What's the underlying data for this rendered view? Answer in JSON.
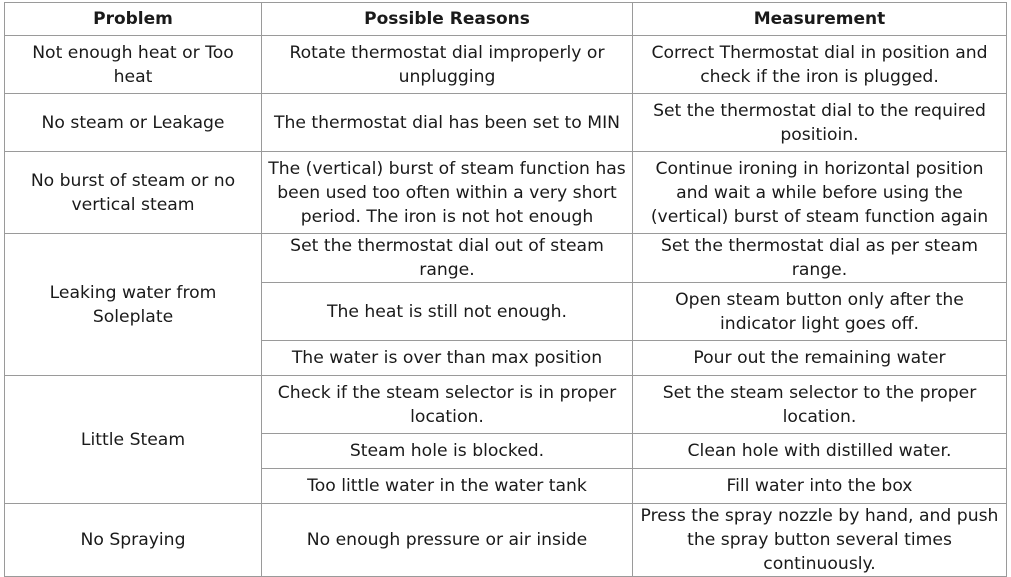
{
  "headers": {
    "problem": "Problem",
    "reasons": "Possible Reasons",
    "measurement": "Measurement"
  },
  "rows": [
    {
      "problem": "Not enough heat or Too heat",
      "items": [
        {
          "reason": "Rotate thermostat dial improperly or unplugging",
          "measure": "Correct Thermostat dial in position and check if the iron is plugged."
        }
      ]
    },
    {
      "problem": "No steam or Leakage",
      "items": [
        {
          "reason": "The thermostat dial has been set to MIN",
          "measure": "Set the thermostat dial to the required positioin."
        }
      ]
    },
    {
      "problem": "No burst of steam or no vertical steam",
      "items": [
        {
          "reason": "The (vertical) burst of steam function has been used too often within a very short period. The iron is not hot enough",
          "measure": "Continue ironing in horizontal position and wait a while before using the (vertical) burst of steam function again"
        }
      ]
    },
    {
      "problem": "Leaking water from Soleplate",
      "items": [
        {
          "reason": "Set the thermostat dial out of steam range.",
          "measure": "Set the thermostat dial as per steam range."
        },
        {
          "reason": "The heat is still not enough.",
          "measure": "Open steam button only after the indicator light goes off."
        },
        {
          "reason": "The water is over than max position",
          "measure": "Pour out the remaining water"
        }
      ]
    },
    {
      "problem": "Little Steam",
      "items": [
        {
          "reason": "Check if the steam selector is in proper location.",
          "measure": "Set the steam selector to the proper location."
        },
        {
          "reason": "Steam hole is blocked.",
          "measure": "Clean hole with distilled water."
        },
        {
          "reason": "Too little water in the water tank",
          "measure": "Fill water into the box"
        }
      ]
    },
    {
      "problem": "No Spraying",
      "items": [
        {
          "reason": "No enough pressure or air inside",
          "measure": "Press the spray nozzle by hand, and push the spray button several times continuously."
        }
      ]
    }
  ]
}
